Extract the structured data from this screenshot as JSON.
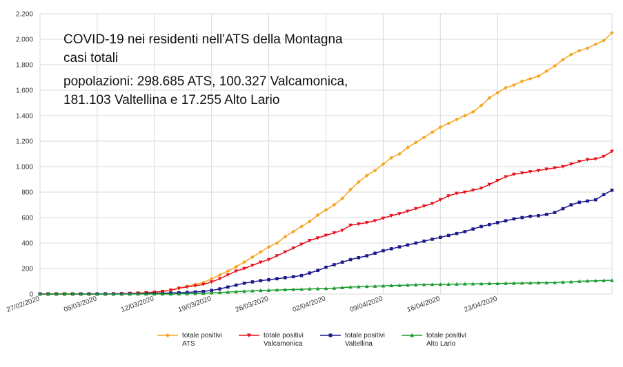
{
  "chart_data": {
    "type": "line",
    "title_lines": [
      "COVID-19 nei residenti nell'ATS della Montagna",
      "casi totali",
      "popolazioni: 298.685 ATS, 100.327 Valcamonica,",
      "181.103 Valtellina e 17.255 Alto Lario"
    ],
    "xlabel": "",
    "ylabel": "",
    "ylim": [
      0,
      2200
    ],
    "y_ticks": [
      0,
      200,
      400,
      600,
      800,
      1000,
      1200,
      1400,
      1600,
      1800,
      2000,
      2200
    ],
    "y_tick_labels": [
      "0",
      "200",
      "400",
      "600",
      "800",
      "1.000",
      "1.200",
      "1.400",
      "1.600",
      "1.800",
      "2.000",
      "2.200"
    ],
    "x_start": "27/02/2020",
    "x_tick_labels": [
      "27/02/2020",
      "05/03/2020",
      "12/03/2020",
      "19/03/2020",
      "26/03/2020",
      "02/04/2020",
      "09/04/2020",
      "16/04/2020",
      "23/04/2020"
    ],
    "grid": true,
    "legend_position": "bottom",
    "series": [
      {
        "name": "totale positivi ATS",
        "legend_lines": [
          "totale positivi",
          "ATS"
        ],
        "color": "#f5a623",
        "marker": "diamond",
        "values": [
          0,
          0,
          0,
          0,
          0,
          0,
          0,
          0,
          1,
          2,
          3,
          5,
          7,
          10,
          14,
          20,
          30,
          45,
          60,
          75,
          90,
          120,
          150,
          180,
          215,
          250,
          290,
          330,
          370,
          400,
          450,
          490,
          530,
          570,
          620,
          660,
          700,
          750,
          820,
          880,
          930,
          970,
          1020,
          1070,
          1100,
          1150,
          1190,
          1230,
          1270,
          1310,
          1340,
          1370,
          1400,
          1430,
          1480,
          1540,
          1580,
          1620,
          1640,
          1670,
          1690,
          1710,
          1750,
          1790,
          1840,
          1880,
          1910,
          1930,
          1960,
          1990,
          2050
        ]
      },
      {
        "name": "totale positivi Valcamonica",
        "legend_lines": [
          "totale positivi",
          "Valcamonica"
        ],
        "color": "#e8101a",
        "marker": "triangle-down",
        "values": [
          0,
          0,
          0,
          0,
          0,
          0,
          0,
          0,
          1,
          2,
          3,
          5,
          7,
          10,
          14,
          20,
          30,
          45,
          55,
          65,
          75,
          95,
          120,
          150,
          180,
          200,
          225,
          250,
          270,
          300,
          330,
          360,
          390,
          420,
          440,
          460,
          480,
          500,
          540,
          550,
          560,
          575,
          595,
          615,
          630,
          650,
          670,
          690,
          710,
          740,
          770,
          790,
          800,
          815,
          830,
          860,
          890,
          920,
          940,
          950,
          960,
          970,
          980,
          990,
          1000,
          1020,
          1040,
          1055,
          1060,
          1080,
          1120
        ]
      },
      {
        "name": "totale positivi Valtellina",
        "legend_lines": [
          "totale positivi",
          "Valtellina"
        ],
        "color": "#1f1a8c",
        "marker": "square",
        "values": [
          0,
          0,
          0,
          0,
          0,
          0,
          0,
          0,
          0,
          0,
          0,
          1,
          2,
          3,
          4,
          6,
          8,
          10,
          13,
          16,
          20,
          28,
          40,
          55,
          70,
          85,
          95,
          105,
          112,
          120,
          128,
          136,
          145,
          165,
          185,
          210,
          230,
          250,
          270,
          285,
          300,
          320,
          340,
          355,
          370,
          385,
          400,
          415,
          430,
          445,
          460,
          475,
          490,
          510,
          530,
          545,
          560,
          575,
          590,
          600,
          610,
          615,
          625,
          640,
          670,
          700,
          720,
          730,
          740,
          780,
          815
        ]
      },
      {
        "name": "totale positivi Alto Lario",
        "legend_lines": [
          "totale positivi",
          "Alto Lario"
        ],
        "color": "#1a9c2e",
        "marker": "triangle-up",
        "values": [
          0,
          0,
          0,
          0,
          0,
          0,
          0,
          0,
          0,
          0,
          0,
          0,
          0,
          0,
          0,
          0,
          0,
          1,
          2,
          4,
          6,
          9,
          12,
          15,
          18,
          22,
          25,
          28,
          30,
          32,
          34,
          36,
          38,
          40,
          42,
          44,
          46,
          50,
          55,
          57,
          60,
          62,
          64,
          66,
          68,
          70,
          72,
          74,
          75,
          76,
          77,
          78,
          79,
          80,
          81,
          82,
          83,
          84,
          85,
          86,
          87,
          88,
          89,
          90,
          93,
          96,
          100,
          102,
          104,
          106,
          108
        ]
      }
    ]
  }
}
